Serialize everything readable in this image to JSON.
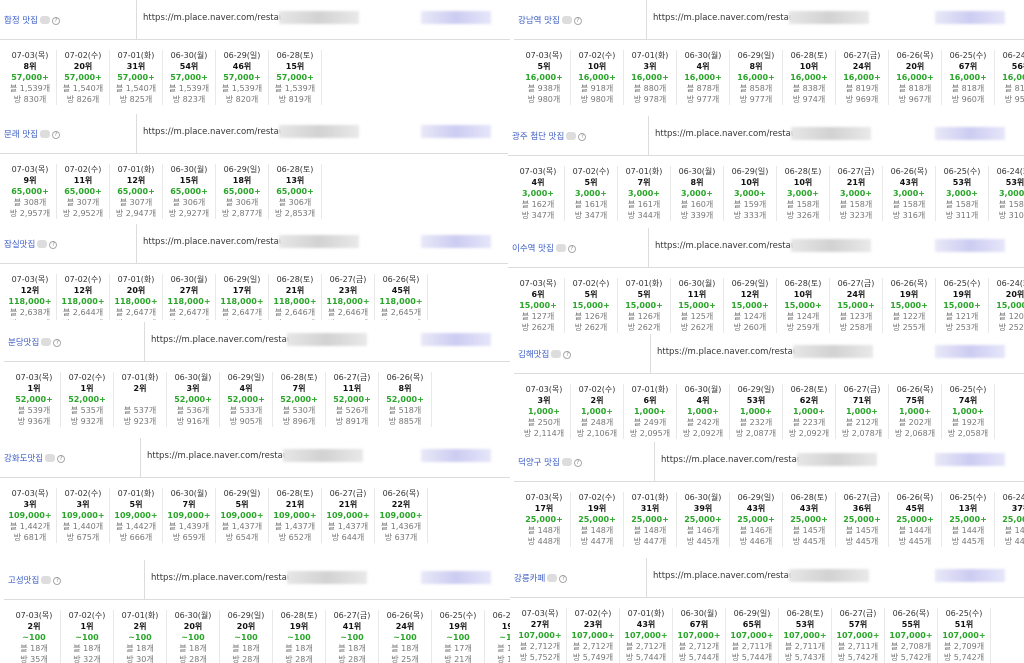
{
  "left_panels": [
    {
      "keyword": "합정 맛집",
      "url": "https://m.place.naver.com/restaurant",
      "cols": [
        {
          "date": "07-03(목)",
          "rank": "8위",
          "volume": "57,000+",
          "blog": "블 1,539개",
          "visit": "방 830개"
        },
        {
          "date": "07-02(수)",
          "rank": "20위",
          "volume": "57,000+",
          "blog": "블 1,540개",
          "visit": "방 826개"
        },
        {
          "date": "07-01(화)",
          "rank": "31위",
          "volume": "57,000+",
          "blog": "블 1,540개",
          "visit": "방 825개"
        },
        {
          "date": "06-30(월)",
          "rank": "54위",
          "volume": "57,000+",
          "blog": "블 1,539개",
          "visit": "방 823개"
        },
        {
          "date": "06-29(일)",
          "rank": "46위",
          "volume": "57,000+",
          "blog": "블 1,539개",
          "visit": "방 820개"
        },
        {
          "date": "06-28(토)",
          "rank": "15위",
          "volume": "57,000+",
          "blog": "블 1,539개",
          "visit": "방 819개"
        }
      ]
    },
    {
      "keyword": "문래 맛집",
      "url": "https://m.place.naver.com/restaurant",
      "cols": [
        {
          "date": "07-03(목)",
          "rank": "9위",
          "volume": "65,000+",
          "blog": "블 308개",
          "visit": "방 2,957개"
        },
        {
          "date": "07-02(수)",
          "rank": "11위",
          "volume": "65,000+",
          "blog": "블 307개",
          "visit": "방 2,952개"
        },
        {
          "date": "07-01(화)",
          "rank": "12위",
          "volume": "65,000+",
          "blog": "블 307개",
          "visit": "방 2,947개"
        },
        {
          "date": "06-30(월)",
          "rank": "15위",
          "volume": "65,000+",
          "blog": "블 306개",
          "visit": "방 2,927개"
        },
        {
          "date": "06-29(일)",
          "rank": "18위",
          "volume": "65,000+",
          "blog": "블 306개",
          "visit": "방 2,877개"
        },
        {
          "date": "06-28(토)",
          "rank": "13위",
          "volume": "65,000+",
          "blog": "블 306개",
          "visit": "방 2,853개"
        }
      ]
    },
    {
      "keyword": "잠실맛집",
      "url": "https://m.place.naver.com/restaurant",
      "cols": [
        {
          "date": "07-03(목)",
          "rank": "12위",
          "volume": "118,000+",
          "blog": "블 2,638개",
          "visit": "방 1,959개"
        },
        {
          "date": "07-02(수)",
          "rank": "12위",
          "volume": "118,000+",
          "blog": "블 2,644개",
          "visit": "방 1,952개"
        },
        {
          "date": "07-01(화)",
          "rank": "20위",
          "volume": "118,000+",
          "blog": "블 2,647개",
          "visit": "방 1,948개"
        },
        {
          "date": "06-30(월)",
          "rank": "27위",
          "volume": "118,000+",
          "blog": "블 2,647개",
          "visit": "방 1,943개"
        },
        {
          "date": "06-29(일)",
          "rank": "17위",
          "volume": "118,000+",
          "blog": "블 2,647개",
          "visit": "방 1,944개"
        },
        {
          "date": "06-28(토)",
          "rank": "21위",
          "volume": "118,000+",
          "blog": "블 2,646개",
          "visit": "방 1,936개"
        },
        {
          "date": "06-27(금)",
          "rank": "23위",
          "volume": "118,000+",
          "blog": "블 2,646개",
          "visit": "방 1,936개"
        },
        {
          "date": "06-26(목)",
          "rank": "45위",
          "volume": "118,000+",
          "blog": "블 2,645개",
          "visit": "방 1,929개"
        }
      ]
    },
    {
      "keyword": "분당맛집",
      "url": "https://m.place.naver.com/restaurant",
      "cols": [
        {
          "date": "07-03(목)",
          "rank": "1위",
          "volume": "52,000+",
          "blog": "블 539개",
          "visit": "방 936개"
        },
        {
          "date": "07-02(수)",
          "rank": "1위",
          "volume": "52,000+",
          "blog": "블 535개",
          "visit": "방 932개"
        },
        {
          "date": "07-01(화)",
          "rank": "2위",
          "volume": "",
          "blog": "블 537개",
          "visit": "방 923개"
        },
        {
          "date": "06-30(월)",
          "rank": "3위",
          "volume": "52,000+",
          "blog": "블 536개",
          "visit": "방 916개"
        },
        {
          "date": "06-29(일)",
          "rank": "4위",
          "volume": "52,000+",
          "blog": "블 533개",
          "visit": "방 905개"
        },
        {
          "date": "06-28(토)",
          "rank": "7위",
          "volume": "52,000+",
          "blog": "블 530개",
          "visit": "방 896개"
        },
        {
          "date": "06-27(금)",
          "rank": "11위",
          "volume": "52,000+",
          "blog": "블 526개",
          "visit": "방 891개"
        },
        {
          "date": "06-26(목)",
          "rank": "8위",
          "volume": "52,000+",
          "blog": "블 518개",
          "visit": "방 885개"
        }
      ]
    },
    {
      "keyword": "강화도맛집",
      "url": "https://m.place.naver.com/restaurant",
      "cols": [
        {
          "date": "07-03(목)",
          "rank": "3위",
          "volume": "109,000+",
          "blog": "블 1,442개",
          "visit": "방 681개"
        },
        {
          "date": "07-02(수)",
          "rank": "3위",
          "volume": "109,000+",
          "blog": "블 1,440개",
          "visit": "방 675개"
        },
        {
          "date": "07-01(화)",
          "rank": "5위",
          "volume": "109,000+",
          "blog": "블 1,442개",
          "visit": "방 666개"
        },
        {
          "date": "06-30(월)",
          "rank": "7위",
          "volume": "109,000+",
          "blog": "블 1,439개",
          "visit": "방 659개"
        },
        {
          "date": "06-29(일)",
          "rank": "5위",
          "volume": "109,000+",
          "blog": "블 1,437개",
          "visit": "방 654개"
        },
        {
          "date": "06-28(토)",
          "rank": "21위",
          "volume": "109,000+",
          "blog": "블 1,437개",
          "visit": "방 652개"
        },
        {
          "date": "06-27(금)",
          "rank": "21위",
          "volume": "109,000+",
          "blog": "블 1,437개",
          "visit": "방 644개"
        },
        {
          "date": "06-26(목)",
          "rank": "22위",
          "volume": "109,000+",
          "blog": "블 1,436개",
          "visit": "방 637개"
        }
      ]
    },
    {
      "keyword": "고성맛집",
      "url": "https://m.place.naver.com/restaurant",
      "cols": [
        {
          "date": "07-03(목)",
          "rank": "2위",
          "volume": "~100",
          "blog": "블 18개",
          "visit": "방 35개"
        },
        {
          "date": "07-02(수)",
          "rank": "1위",
          "volume": "~100",
          "blog": "블 18개",
          "visit": "방 32개"
        },
        {
          "date": "07-01(화)",
          "rank": "2위",
          "volume": "~100",
          "blog": "블 18개",
          "visit": "방 30개"
        },
        {
          "date": "06-30(월)",
          "rank": "20위",
          "volume": "~100",
          "blog": "블 18개",
          "visit": "방 28개"
        },
        {
          "date": "06-29(일)",
          "rank": "20위",
          "volume": "~100",
          "blog": "블 18개",
          "visit": "방 28개"
        },
        {
          "date": "06-28(토)",
          "rank": "19위",
          "volume": "~100",
          "blog": "블 18개",
          "visit": "방 28개"
        },
        {
          "date": "06-27(금)",
          "rank": "41위",
          "volume": "~100",
          "blog": "블 18개",
          "visit": "방 28개"
        },
        {
          "date": "06-26(목)",
          "rank": "24위",
          "volume": "~100",
          "blog": "블 18개",
          "visit": "방 25개"
        },
        {
          "date": "06-25(수)",
          "rank": "19위",
          "volume": "~100",
          "blog": "블 17개",
          "visit": "방 21개"
        },
        {
          "date": "06-24(화)",
          "rank": "19위",
          "volume": "~100",
          "blog": "블 17개",
          "visit": "방 18개"
        }
      ]
    }
  ],
  "right_panels": [
    {
      "keyword": "강남역 맛집",
      "url": "https://m.place.naver.com/restaurant",
      "cols": [
        {
          "date": "07-03(목)",
          "rank": "5위",
          "volume": "16,000+",
          "blog": "블 938개",
          "visit": "방 980개"
        },
        {
          "date": "07-02(수)",
          "rank": "10위",
          "volume": "16,000+",
          "blog": "블 918개",
          "visit": "방 980개"
        },
        {
          "date": "07-01(화)",
          "rank": "3위",
          "volume": "16,000+",
          "blog": "블 880개",
          "visit": "방 978개"
        },
        {
          "date": "06-30(월)",
          "rank": "4위",
          "volume": "16,000+",
          "blog": "블 878개",
          "visit": "방 977개"
        },
        {
          "date": "06-29(일)",
          "rank": "8위",
          "volume": "16,000+",
          "blog": "블 858개",
          "visit": "방 977개"
        },
        {
          "date": "06-28(토)",
          "rank": "10위",
          "volume": "16,000+",
          "blog": "블 838개",
          "visit": "방 974개"
        },
        {
          "date": "06-27(금)",
          "rank": "24위",
          "volume": "16,000+",
          "blog": "블 819개",
          "visit": "방 969개"
        },
        {
          "date": "06-26(목)",
          "rank": "20위",
          "volume": "16,000+",
          "blog": "블 818개",
          "visit": "방 967개"
        },
        {
          "date": "06-25(수)",
          "rank": "67위",
          "volume": "16,000+",
          "blog": "블 818개",
          "visit": "방 960개"
        },
        {
          "date": "06-24(화)",
          "rank": "56위",
          "volume": "16,000+",
          "blog": "블 818개",
          "visit": "방 955개"
        }
      ]
    },
    {
      "keyword": "광주 첨단 맛집",
      "url": "https://m.place.naver.com/restaurant",
      "cols": [
        {
          "date": "07-03(목)",
          "rank": "4위",
          "volume": "3,000+",
          "blog": "블 162개",
          "visit": "방 347개"
        },
        {
          "date": "07-02(수)",
          "rank": "5위",
          "volume": "3,000+",
          "blog": "블 161개",
          "visit": "방 347개"
        },
        {
          "date": "07-01(화)",
          "rank": "7위",
          "volume": "3,000+",
          "blog": "블 161개",
          "visit": "방 344개"
        },
        {
          "date": "06-30(월)",
          "rank": "8위",
          "volume": "3,000+",
          "blog": "블 160개",
          "visit": "방 339개"
        },
        {
          "date": "06-29(일)",
          "rank": "10위",
          "volume": "3,000+",
          "blog": "블 159개",
          "visit": "방 333개"
        },
        {
          "date": "06-28(토)",
          "rank": "10위",
          "volume": "3,000+",
          "blog": "블 158개",
          "visit": "방 326개"
        },
        {
          "date": "06-27(금)",
          "rank": "21위",
          "volume": "3,000+",
          "blog": "블 158개",
          "visit": "방 323개"
        },
        {
          "date": "06-26(목)",
          "rank": "43위",
          "volume": "3,000+",
          "blog": "블 158개",
          "visit": "방 316개"
        },
        {
          "date": "06-25(수)",
          "rank": "53위",
          "volume": "3,000+",
          "blog": "블 158개",
          "visit": "방 311개"
        },
        {
          "date": "06-24(화)",
          "rank": "53위",
          "volume": "3,000+",
          "blog": "블 158개",
          "visit": "방 310개"
        }
      ]
    },
    {
      "keyword": "이수역 맛집",
      "url": "https://m.place.naver.com/restaurant",
      "cols": [
        {
          "date": "07-03(목)",
          "rank": "6위",
          "volume": "15,000+",
          "blog": "블 127개",
          "visit": "방 262개"
        },
        {
          "date": "07-02(수)",
          "rank": "5위",
          "volume": "15,000+",
          "blog": "블 126개",
          "visit": "방 262개"
        },
        {
          "date": "07-01(화)",
          "rank": "5위",
          "volume": "15,000+",
          "blog": "블 126개",
          "visit": "방 262개"
        },
        {
          "date": "06-30(월)",
          "rank": "11위",
          "volume": "15,000+",
          "blog": "블 125개",
          "visit": "방 262개"
        },
        {
          "date": "06-29(일)",
          "rank": "12위",
          "volume": "15,000+",
          "blog": "블 124개",
          "visit": "방 260개"
        },
        {
          "date": "06-28(토)",
          "rank": "10위",
          "volume": "15,000+",
          "blog": "블 124개",
          "visit": "방 259개"
        },
        {
          "date": "06-27(금)",
          "rank": "24위",
          "volume": "15,000+",
          "blog": "블 123개",
          "visit": "방 258개"
        },
        {
          "date": "06-26(목)",
          "rank": "19위",
          "volume": "15,000+",
          "blog": "블 122개",
          "visit": "방 255개"
        },
        {
          "date": "06-25(수)",
          "rank": "19위",
          "volume": "15,000+",
          "blog": "블 121개",
          "visit": "방 253개"
        },
        {
          "date": "06-24(화)",
          "rank": "20위",
          "volume": "15,000+",
          "blog": "블 120개",
          "visit": "방 252개"
        }
      ]
    },
    {
      "keyword": "김해맛집",
      "url": "https://m.place.naver.com/restaurant",
      "cols": [
        {
          "date": "07-03(목)",
          "rank": "3위",
          "volume": "1,000+",
          "blog": "블 250개",
          "visit": "방 2,114개"
        },
        {
          "date": "07-02(수)",
          "rank": "2위",
          "volume": "1,000+",
          "blog": "블 248개",
          "visit": "방 2,106개"
        },
        {
          "date": "07-01(화)",
          "rank": "6위",
          "volume": "1,000+",
          "blog": "블 249개",
          "visit": "방 2,095개"
        },
        {
          "date": "06-30(월)",
          "rank": "4위",
          "volume": "1,000+",
          "blog": "블 242개",
          "visit": "방 2,092개"
        },
        {
          "date": "06-29(일)",
          "rank": "53위",
          "volume": "1,000+",
          "blog": "블 232개",
          "visit": "방 2,087개"
        },
        {
          "date": "06-28(토)",
          "rank": "62위",
          "volume": "1,000+",
          "blog": "블 223개",
          "visit": "방 2,092개"
        },
        {
          "date": "06-27(금)",
          "rank": "71위",
          "volume": "1,000+",
          "blog": "블 212개",
          "visit": "방 2,078개"
        },
        {
          "date": "06-26(목)",
          "rank": "75위",
          "volume": "1,000+",
          "blog": "블 202개",
          "visit": "방 2,068개"
        },
        {
          "date": "06-25(수)",
          "rank": "74위",
          "volume": "1,000+",
          "blog": "블 192개",
          "visit": "방 2,058개"
        }
      ]
    },
    {
      "keyword": "덕양구 맛집",
      "url": "https://m.place.naver.com/restaurant",
      "cols": [
        {
          "date": "07-03(목)",
          "rank": "17위",
          "volume": "25,000+",
          "blog": "블 148개",
          "visit": "방 448개"
        },
        {
          "date": "07-02(수)",
          "rank": "19위",
          "volume": "25,000+",
          "blog": "블 148개",
          "visit": "방 447개"
        },
        {
          "date": "07-01(화)",
          "rank": "31위",
          "volume": "25,000+",
          "blog": "블 148개",
          "visit": "방 447개"
        },
        {
          "date": "06-30(월)",
          "rank": "39위",
          "volume": "25,000+",
          "blog": "블 146개",
          "visit": "방 445개"
        },
        {
          "date": "06-29(일)",
          "rank": "43위",
          "volume": "25,000+",
          "blog": "블 146개",
          "visit": "방 446개"
        },
        {
          "date": "06-28(토)",
          "rank": "43위",
          "volume": "25,000+",
          "blog": "블 145개",
          "visit": "방 445개"
        },
        {
          "date": "06-27(금)",
          "rank": "36위",
          "volume": "25,000+",
          "blog": "블 145개",
          "visit": "방 445개"
        },
        {
          "date": "06-26(목)",
          "rank": "45위",
          "volume": "25,000+",
          "blog": "블 144개",
          "visit": "방 445개"
        },
        {
          "date": "06-25(수)",
          "rank": "13위",
          "volume": "25,000+",
          "blog": "블 144개",
          "visit": "방 445개"
        },
        {
          "date": "06-24(화)",
          "rank": "37위",
          "volume": "25,000+",
          "blog": "블 143개",
          "visit": "방 444개"
        }
      ]
    },
    {
      "keyword": "강릉카페",
      "url": "https://m.place.naver.com/restaurant",
      "cols": [
        {
          "date": "07-03(목)",
          "rank": "27위",
          "volume": "107,000+",
          "blog": "블 2,712개",
          "visit": "방 5,752개"
        },
        {
          "date": "07-02(수)",
          "rank": "23위",
          "volume": "107,000+",
          "blog": "블 2,712개",
          "visit": "방 5,749개"
        },
        {
          "date": "07-01(화)",
          "rank": "43위",
          "volume": "107,000+",
          "blog": "블 2,712개",
          "visit": "방 5,744개"
        },
        {
          "date": "06-30(월)",
          "rank": "67위",
          "volume": "107,000+",
          "blog": "블 2,712개",
          "visit": "방 5,744개"
        },
        {
          "date": "06-29(일)",
          "rank": "65위",
          "volume": "107,000+",
          "blog": "블 2,711개",
          "visit": "방 5,744개"
        },
        {
          "date": "06-28(토)",
          "rank": "53위",
          "volume": "107,000+",
          "blog": "블 2,711개",
          "visit": "방 5,743개"
        },
        {
          "date": "06-27(금)",
          "rank": "57위",
          "volume": "107,000+",
          "blog": "블 2,711개",
          "visit": "방 5,742개"
        },
        {
          "date": "06-26(목)",
          "rank": "55위",
          "volume": "107,000+",
          "blog": "블 2,708개",
          "visit": "방 5,742개"
        },
        {
          "date": "06-25(수)",
          "rank": "51위",
          "volume": "107,000+",
          "blog": "블 2,709개",
          "visit": "방 5,742개"
        }
      ]
    }
  ],
  "icons": {
    "help": "help-icon"
  },
  "colors": {
    "keyword": "#3b5cc4",
    "volume": "#2aa52a"
  }
}
